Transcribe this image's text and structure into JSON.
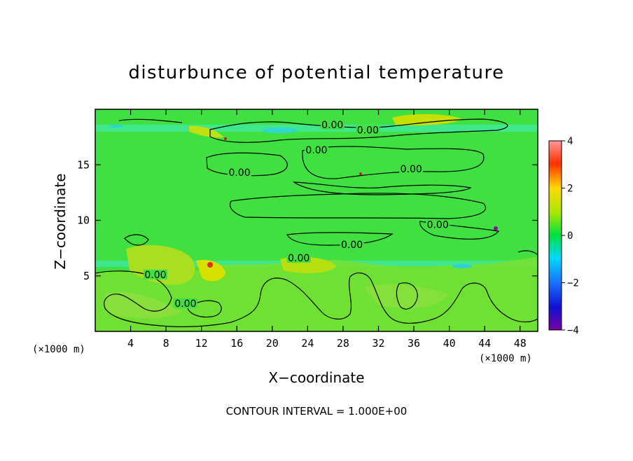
{
  "chart_data": {
    "type": "heatmap",
    "title": "disturbunce of potential temperature",
    "xlabel": "X−coordinate",
    "ylabel": "Z−coordinate",
    "x_unit_label": "(×1000 m)",
    "z_unit_label": "(×1000 m)",
    "xlim": [
      0,
      50
    ],
    "ylim": [
      0,
      20
    ],
    "x_ticks": [
      4,
      8,
      12,
      16,
      20,
      24,
      28,
      32,
      36,
      40,
      44,
      48
    ],
    "y_ticks": [
      5,
      10,
      15
    ],
    "colorbar": {
      "range": [
        -4,
        4
      ],
      "ticks": [
        -4,
        -2,
        0,
        2,
        4
      ],
      "tick_labels": [
        "−4",
        "−2",
        "0",
        "2",
        "4"
      ],
      "colors": [
        "#7a00a0",
        "#1010d0",
        "#1a70ff",
        "#00d8ff",
        "#00e040",
        "#a8e800",
        "#ffd800",
        "#ff3000",
        "#ff9898"
      ]
    },
    "field_background": "#40e040",
    "contour_labels": [
      {
        "text": "0.00",
        "x": 26.8,
        "z": 18.5
      },
      {
        "text": "0.00",
        "x": 30.8,
        "z": 18.0
      },
      {
        "text": "0.00",
        "x": 25.0,
        "z": 16.2
      },
      {
        "text": "0.00",
        "x": 16.3,
        "z": 14.2
      },
      {
        "text": "0.00",
        "x": 35.7,
        "z": 14.5
      },
      {
        "text": "0.00",
        "x": 38.7,
        "z": 9.5
      },
      {
        "text": "0.00",
        "x": 29.0,
        "z": 7.7
      },
      {
        "text": "0.00",
        "x": 23.0,
        "z": 6.5
      },
      {
        "text": "0.00",
        "x": 6.8,
        "z": 5.0
      },
      {
        "text": "0.00",
        "x": 10.2,
        "z": 2.4
      }
    ],
    "footnote": "CONTOUR INTERVAL = 1.000E+00"
  }
}
